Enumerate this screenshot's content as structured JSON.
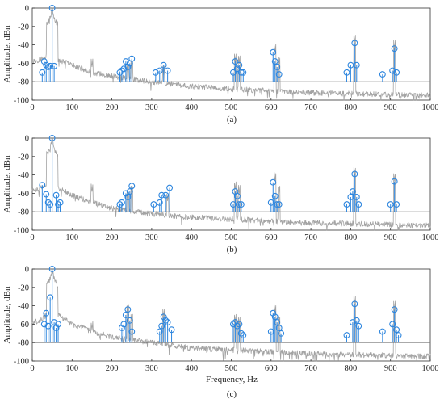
{
  "chart_data": [
    {
      "type": "spectrum-stem",
      "panel_label": "(a)",
      "ylabel": "Amplitude, dBn",
      "xlabel": "",
      "xlim": [
        0,
        1000
      ],
      "ylim": [
        -100,
        0
      ],
      "xticks": [
        0,
        100,
        200,
        300,
        400,
        500,
        600,
        700,
        800,
        900,
        1000
      ],
      "yticks": [
        0,
        -20,
        -40,
        -60,
        -80,
        -100
      ],
      "grid": false,
      "series": [
        {
          "kind": "spectrum",
          "color": "#a3a3a3",
          "peak_hz": 50,
          "floor_points": [
            [
              0,
              -58
            ],
            [
              20,
              -56
            ],
            [
              35,
              -52
            ],
            [
              45,
              -40
            ],
            [
              50,
              0
            ],
            [
              55,
              -40
            ],
            [
              65,
              -56
            ],
            [
              100,
              -62
            ],
            [
              150,
              -70
            ],
            [
              200,
              -74
            ],
            [
              300,
              -80
            ],
            [
              400,
              -85
            ],
            [
              500,
              -88
            ],
            [
              600,
              -90
            ],
            [
              700,
              -92
            ],
            [
              800,
              -93
            ],
            [
              900,
              -94
            ],
            [
              1000,
              -95
            ]
          ],
          "spikes": [
            [
              150,
              -64
            ],
            [
              240,
              -70
            ],
            [
              250,
              -66
            ],
            [
              330,
              -72
            ],
            [
              510,
              -58
            ],
            [
              520,
              -60
            ],
            [
              610,
              -48
            ],
            [
              620,
              -62
            ],
            [
              810,
              -38
            ],
            [
              910,
              -44
            ]
          ]
        },
        {
          "kind": "harmonic-stems",
          "color": "#2e86de",
          "marker": "open-circle",
          "baseline": -80,
          "points": [
            [
              25,
              -70
            ],
            [
              30,
              -58
            ],
            [
              35,
              -62
            ],
            [
              40,
              -64
            ],
            [
              45,
              -63
            ],
            [
              50,
              0
            ],
            [
              55,
              -63
            ],
            [
              220,
              -70
            ],
            [
              225,
              -68
            ],
            [
              230,
              -66
            ],
            [
              235,
              -58
            ],
            [
              240,
              -64
            ],
            [
              245,
              -60
            ],
            [
              250,
              -55
            ],
            [
              310,
              -70
            ],
            [
              320,
              -68
            ],
            [
              330,
              -62
            ],
            [
              340,
              -68
            ],
            [
              505,
              -70
            ],
            [
              510,
              -58
            ],
            [
              515,
              -66
            ],
            [
              520,
              -62
            ],
            [
              525,
              -70
            ],
            [
              530,
              -70
            ],
            [
              605,
              -48
            ],
            [
              610,
              -58
            ],
            [
              615,
              -64
            ],
            [
              620,
              -72
            ],
            [
              790,
              -70
            ],
            [
              800,
              -62
            ],
            [
              810,
              -38
            ],
            [
              815,
              -62
            ],
            [
              880,
              -72
            ],
            [
              905,
              -68
            ],
            [
              910,
              -44
            ],
            [
              915,
              -70
            ]
          ]
        }
      ]
    },
    {
      "type": "spectrum-stem",
      "panel_label": "(b)",
      "ylabel": "Amplitude, dBn",
      "xlabel": "",
      "xlim": [
        0,
        1000
      ],
      "ylim": [
        -100,
        0
      ],
      "xticks": [
        0,
        100,
        200,
        300,
        400,
        500,
        600,
        700,
        800,
        900,
        1000
      ],
      "yticks": [
        0,
        -20,
        -40,
        -60,
        -80,
        -100
      ],
      "grid": false,
      "series": [
        {
          "kind": "spectrum",
          "color": "#a3a3a3",
          "peak_hz": 50,
          "floor_points": [
            [
              0,
              -56
            ],
            [
              20,
              -55
            ],
            [
              35,
              -50
            ],
            [
              45,
              -38
            ],
            [
              50,
              0
            ],
            [
              55,
              -38
            ],
            [
              65,
              -54
            ],
            [
              100,
              -62
            ],
            [
              150,
              -70
            ],
            [
              200,
              -76
            ],
            [
              300,
              -82
            ],
            [
              400,
              -86
            ],
            [
              500,
              -88
            ],
            [
              600,
              -90
            ],
            [
              700,
              -92
            ],
            [
              800,
              -93
            ],
            [
              900,
              -94
            ],
            [
              1000,
              -95
            ]
          ],
          "spikes": [
            [
              150,
              -58
            ],
            [
              240,
              -66
            ],
            [
              250,
              -60
            ],
            [
              340,
              -68
            ],
            [
              510,
              -56
            ],
            [
              520,
              -60
            ],
            [
              610,
              -46
            ],
            [
              620,
              -60
            ],
            [
              810,
              -40
            ],
            [
              910,
              -46
            ]
          ]
        },
        {
          "kind": "harmonic-stems",
          "color": "#2e86de",
          "marker": "open-circle",
          "baseline": -80,
          "points": [
            [
              25,
              -51
            ],
            [
              35,
              -61
            ],
            [
              40,
              -70
            ],
            [
              45,
              -72
            ],
            [
              50,
              0
            ],
            [
              60,
              -62
            ],
            [
              65,
              -72
            ],
            [
              70,
              -70
            ],
            [
              220,
              -72
            ],
            [
              225,
              -70
            ],
            [
              235,
              -60
            ],
            [
              240,
              -64
            ],
            [
              245,
              -58
            ],
            [
              250,
              -52
            ],
            [
              305,
              -72
            ],
            [
              320,
              -70
            ],
            [
              325,
              -62
            ],
            [
              335,
              -62
            ],
            [
              345,
              -54
            ],
            [
              505,
              -72
            ],
            [
              510,
              -58
            ],
            [
              515,
              -63
            ],
            [
              520,
              -72
            ],
            [
              525,
              -72
            ],
            [
              600,
              -70
            ],
            [
              605,
              -48
            ],
            [
              610,
              -63
            ],
            [
              615,
              -72
            ],
            [
              620,
              -72
            ],
            [
              790,
              -72
            ],
            [
              800,
              -64
            ],
            [
              805,
              -58
            ],
            [
              810,
              -39
            ],
            [
              815,
              -64
            ],
            [
              820,
              -72
            ],
            [
              900,
              -72
            ],
            [
              910,
              -47
            ],
            [
              915,
              -72
            ]
          ]
        }
      ]
    },
    {
      "type": "spectrum-stem",
      "panel_label": "(c)",
      "ylabel": "Amplitude, dBn",
      "xlabel": "Frequency, Hz",
      "xlim": [
        0,
        1000
      ],
      "ylim": [
        -100,
        0
      ],
      "xticks": [
        0,
        100,
        200,
        300,
        400,
        500,
        600,
        700,
        800,
        900,
        1000
      ],
      "yticks": [
        0,
        -20,
        -40,
        -60,
        -80,
        -100
      ],
      "grid": false,
      "series": [
        {
          "kind": "spectrum",
          "color": "#a3a3a3",
          "peak_hz": 50,
          "floor_points": [
            [
              0,
              -58
            ],
            [
              20,
              -56
            ],
            [
              35,
              -50
            ],
            [
              45,
              -30
            ],
            [
              50,
              0
            ],
            [
              55,
              -30
            ],
            [
              65,
              -50
            ],
            [
              100,
              -60
            ],
            [
              150,
              -68
            ],
            [
              200,
              -74
            ],
            [
              300,
              -80
            ],
            [
              400,
              -86
            ],
            [
              500,
              -88
            ],
            [
              600,
              -90
            ],
            [
              700,
              -92
            ],
            [
              800,
              -93
            ],
            [
              900,
              -94
            ],
            [
              1000,
              -95
            ]
          ],
          "spikes": [
            [
              150,
              -66
            ],
            [
              240,
              -48
            ],
            [
              250,
              -58
            ],
            [
              330,
              -52
            ],
            [
              510,
              -58
            ],
            [
              520,
              -60
            ],
            [
              610,
              -48
            ],
            [
              620,
              -60
            ],
            [
              810,
              -38
            ],
            [
              910,
              -44
            ]
          ]
        },
        {
          "kind": "harmonic-stems",
          "color": "#2e86de",
          "marker": "open-circle",
          "baseline": -80,
          "points": [
            [
              30,
              -60
            ],
            [
              35,
              -48
            ],
            [
              40,
              -62
            ],
            [
              45,
              -31
            ],
            [
              50,
              0
            ],
            [
              55,
              -58
            ],
            [
              60,
              -64
            ],
            [
              65,
              -60
            ],
            [
              225,
              -64
            ],
            [
              230,
              -60
            ],
            [
              235,
              -50
            ],
            [
              240,
              -44
            ],
            [
              245,
              -56
            ],
            [
              250,
              -68
            ],
            [
              320,
              -68
            ],
            [
              325,
              -62
            ],
            [
              330,
              -52
            ],
            [
              335,
              -56
            ],
            [
              340,
              -58
            ],
            [
              350,
              -66
            ],
            [
              505,
              -60
            ],
            [
              510,
              -58
            ],
            [
              515,
              -62
            ],
            [
              520,
              -60
            ],
            [
              525,
              -70
            ],
            [
              530,
              -72
            ],
            [
              600,
              -68
            ],
            [
              605,
              -48
            ],
            [
              610,
              -52
            ],
            [
              615,
              -58
            ],
            [
              620,
              -64
            ],
            [
              625,
              -70
            ],
            [
              790,
              -72
            ],
            [
              805,
              -58
            ],
            [
              810,
              -38
            ],
            [
              815,
              -56
            ],
            [
              820,
              -62
            ],
            [
              880,
              -68
            ],
            [
              905,
              -60
            ],
            [
              910,
              -44
            ],
            [
              915,
              -66
            ],
            [
              920,
              -72
            ]
          ]
        }
      ]
    }
  ]
}
